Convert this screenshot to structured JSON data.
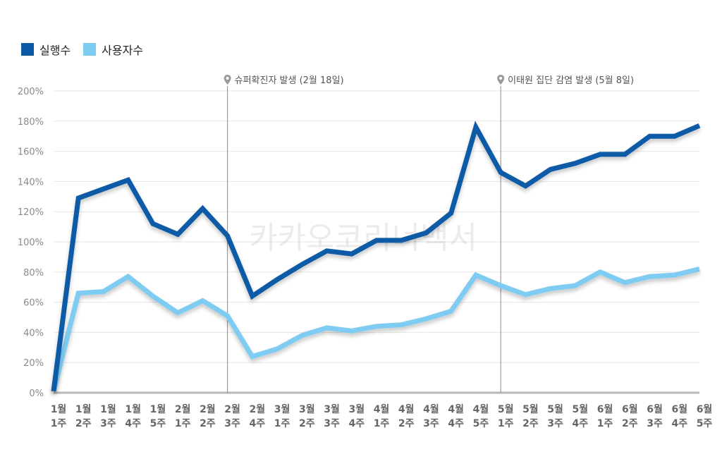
{
  "chart_data": {
    "type": "line",
    "title": "",
    "xlabel": "",
    "ylabel": "",
    "ylim": [
      0,
      200
    ],
    "yticks": [
      0,
      20,
      40,
      60,
      80,
      100,
      120,
      140,
      160,
      180,
      200
    ],
    "ytick_suffix": "%",
    "grid": true,
    "legend_position": "top-left",
    "categories": [
      [
        "1월",
        "1주"
      ],
      [
        "1월",
        "2주"
      ],
      [
        "1월",
        "3주"
      ],
      [
        "1월",
        "4주"
      ],
      [
        "1월",
        "5주"
      ],
      [
        "2월",
        "1주"
      ],
      [
        "2월",
        "2주"
      ],
      [
        "2월",
        "3주"
      ],
      [
        "2월",
        "4주"
      ],
      [
        "3월",
        "1주"
      ],
      [
        "3월",
        "2주"
      ],
      [
        "3월",
        "3주"
      ],
      [
        "3월",
        "4주"
      ],
      [
        "4월",
        "1주"
      ],
      [
        "4월",
        "2주"
      ],
      [
        "4월",
        "3주"
      ],
      [
        "4월",
        "4주"
      ],
      [
        "4월",
        "5주"
      ],
      [
        "5월",
        "1주"
      ],
      [
        "5월",
        "2주"
      ],
      [
        "5월",
        "3주"
      ],
      [
        "5월",
        "4주"
      ],
      [
        "6월",
        "1주"
      ],
      [
        "6월",
        "2주"
      ],
      [
        "6월",
        "3주"
      ],
      [
        "6월",
        "4주"
      ],
      [
        "6월",
        "5주"
      ]
    ],
    "series": [
      {
        "name": "실행수",
        "color": "#0c5aa6",
        "values": [
          1,
          129,
          135,
          141,
          112,
          105,
          122,
          104,
          64,
          75,
          85,
          94,
          92,
          101,
          101,
          106,
          119,
          176,
          146,
          137,
          148,
          152,
          158,
          158,
          170,
          170,
          177
        ]
      },
      {
        "name": "사용자수",
        "color": "#7fccf2",
        "values": [
          1,
          66,
          67,
          77,
          64,
          53,
          61,
          51,
          24,
          29,
          38,
          43,
          41,
          44,
          45,
          49,
          54,
          78,
          71,
          65,
          69,
          71,
          80,
          73,
          77,
          78,
          82
        ]
      }
    ],
    "annotations": [
      {
        "label": "슈퍼확진자 발생 (2월 18일)",
        "category_index": 7,
        "icon": "map-pin-icon"
      },
      {
        "label": "이태원 집단 감염 발생 (5월 8일)",
        "category_index": 18,
        "icon": "map-pin-icon"
      }
    ],
    "watermark": "카카오코리너백서"
  }
}
